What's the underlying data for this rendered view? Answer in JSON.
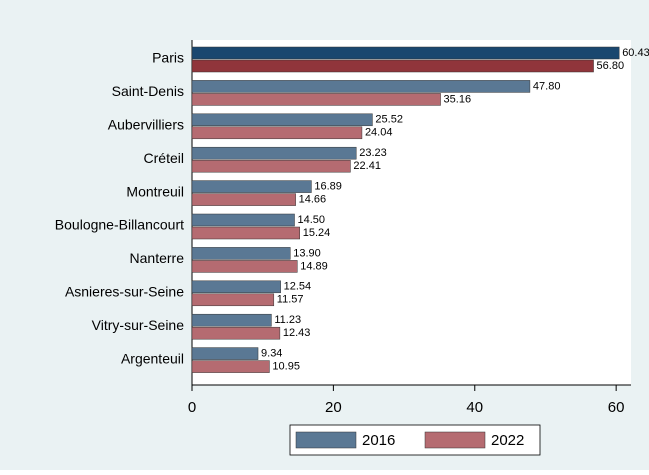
{
  "chart_data": {
    "type": "hbar",
    "categories": [
      "Paris",
      "Saint-Denis",
      "Aubervilliers",
      "Créteil",
      "Montreuil",
      "Boulogne-Billancourt",
      "Nanterre",
      "Asnieres-sur-Seine",
      "Vitry-sur-Seine",
      "Argenteuil"
    ],
    "series": [
      {
        "name": "2016",
        "color": "#5a7894",
        "highlight_color": "#1a476f",
        "values": [
          60.43,
          47.8,
          25.52,
          23.23,
          16.89,
          14.5,
          13.9,
          12.54,
          11.23,
          9.34
        ],
        "value_labels": [
          "60.43",
          "47.80",
          "25.52",
          "23.23",
          "16.89",
          "14.50",
          "13.90",
          "12.54",
          "11.23",
          "9.34"
        ]
      },
      {
        "name": "2022",
        "color": "#b56b71",
        "highlight_color": "#90353b",
        "values": [
          56.8,
          35.16,
          24.04,
          22.41,
          14.66,
          15.24,
          14.89,
          11.57,
          12.43,
          10.95
        ],
        "value_labels": [
          "56.80",
          "35.16",
          "24.04",
          "22.41",
          "14.66",
          "15.24",
          "14.89",
          "11.57",
          "12.43",
          "10.95"
        ]
      }
    ],
    "highlight_index": 0,
    "xlim": [
      0,
      62.1
    ],
    "xticks": [
      0,
      20,
      40,
      60
    ],
    "grid": false,
    "legend": "bottom"
  }
}
